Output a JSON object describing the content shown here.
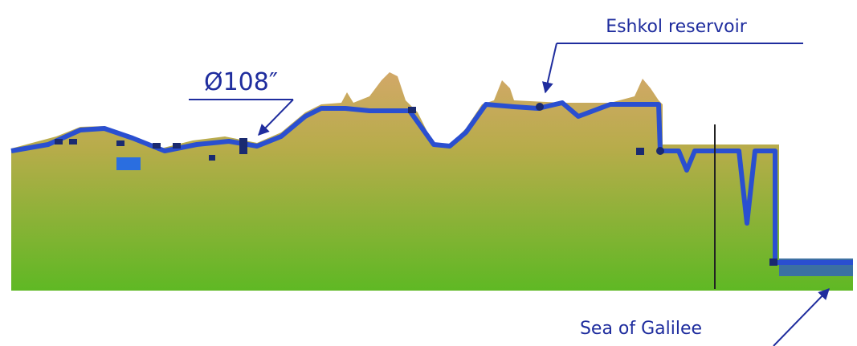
{
  "labels": {
    "reservoir": "Eshkol reservoir",
    "pipe_diameter": "Ø108″",
    "lake": "Sea of Galilee"
  }
}
